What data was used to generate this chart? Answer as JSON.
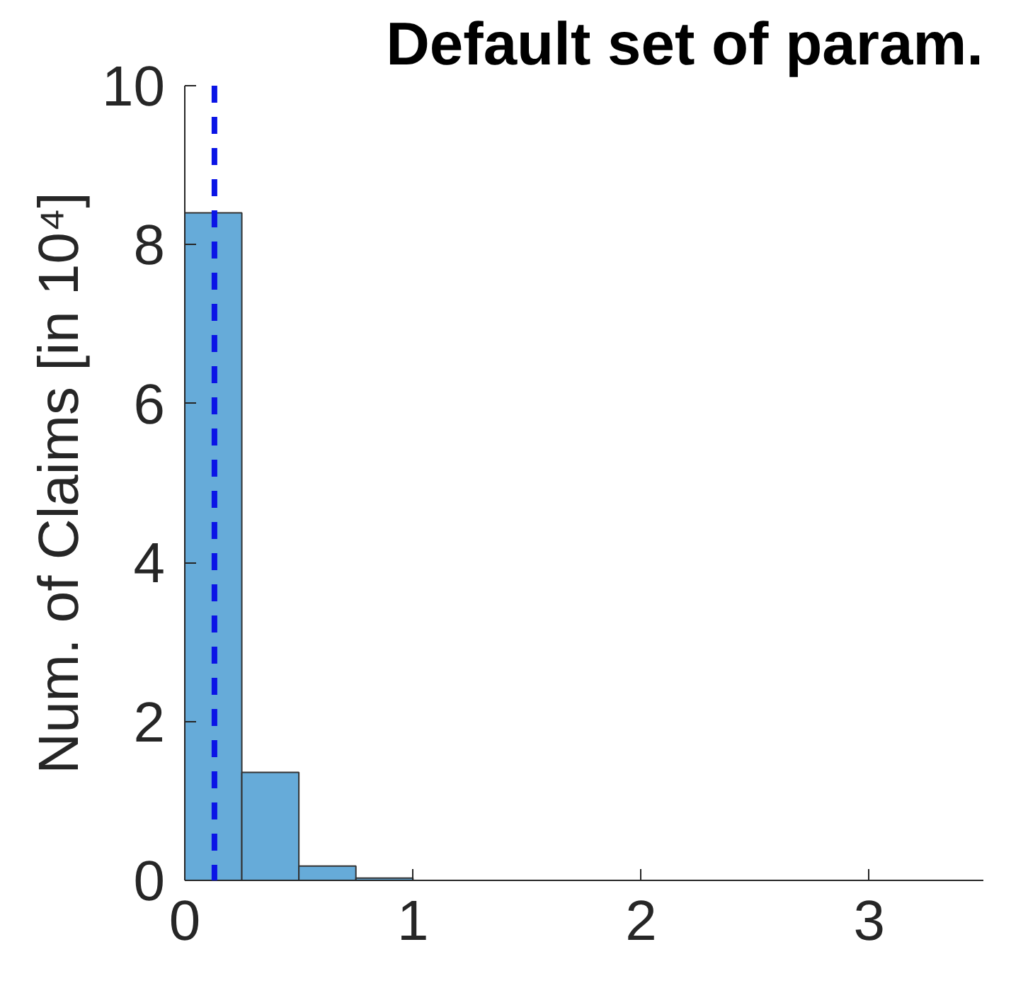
{
  "chart_data": {
    "type": "histogram",
    "title": "Default set of param.",
    "ylabel": "Num. of Claims [in 10⁴]",
    "bins": [
      0,
      0.25,
      0.5,
      0.75,
      1.0
    ],
    "values": [
      8.4,
      1.36,
      0.18,
      0.03
    ],
    "color": "#66abd9",
    "xlim": [
      0,
      3.5
    ],
    "xticks": [
      0,
      1,
      2,
      3
    ],
    "ylim": [
      0,
      10
    ],
    "yticks": [
      0,
      2,
      4,
      6,
      8,
      10
    ],
    "grid": false,
    "ref_lines": [
      {
        "axis": "x",
        "value": 0.13,
        "color": "#0a14e6",
        "line_style": "dashed"
      }
    ]
  }
}
